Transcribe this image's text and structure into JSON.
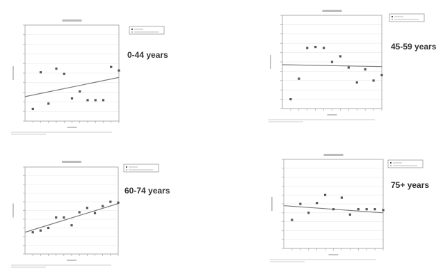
{
  "chart_data": [
    {
      "type": "scatter",
      "age_group": "0-44 years",
      "x": [
        1,
        2,
        3,
        4,
        5,
        6,
        7,
        8,
        9,
        10,
        11,
        12
      ],
      "y": [
        0.07,
        0.28,
        0.1,
        0.3,
        0.27,
        0.13,
        0.17,
        0.12,
        0.12,
        0.12,
        0.31,
        0.29
      ],
      "trend": {
        "y_start": 0.14,
        "y_end": 0.25
      },
      "ylim": [
        0,
        0.55
      ],
      "xlim": [
        0,
        12
      ]
    },
    {
      "type": "scatter",
      "age_group": "45-59 years",
      "x": [
        1,
        2,
        3,
        4,
        5,
        6,
        7,
        8,
        9,
        10,
        11,
        12
      ],
      "y": [
        0.1,
        0.32,
        0.65,
        0.66,
        0.65,
        0.5,
        0.56,
        0.44,
        0.28,
        0.42,
        0.3,
        0.36
      ],
      "trend": {
        "y_start": 0.47,
        "y_end": 0.45
      },
      "ylim": [
        0,
        1.0
      ],
      "xlim": [
        0,
        12
      ]
    },
    {
      "type": "scatter",
      "age_group": "60-74 years",
      "x": [
        1,
        2,
        3,
        4,
        5,
        6,
        7,
        8,
        9,
        10,
        11,
        12
      ],
      "y": [
        0.25,
        0.27,
        0.3,
        0.42,
        0.42,
        0.33,
        0.48,
        0.53,
        0.47,
        0.55,
        0.6,
        0.59
      ],
      "trend": {
        "y_start": 0.25,
        "y_end": 0.58
      },
      "ylim": [
        0,
        1.0
      ],
      "xlim": [
        0,
        12
      ]
    },
    {
      "type": "scatter",
      "age_group": "75+ years",
      "x": [
        1,
        2,
        3,
        4,
        5,
        6,
        7,
        8,
        9,
        10,
        11,
        12
      ],
      "y": [
        0.32,
        0.5,
        0.4,
        0.51,
        0.6,
        0.44,
        0.57,
        0.38,
        0.44,
        0.44,
        0.44,
        0.43
      ],
      "trend": {
        "y_start": 0.48,
        "y_end": 0.4
      },
      "ylim": [
        0,
        1.0
      ],
      "xlim": [
        0,
        12
      ]
    }
  ],
  "colors": {
    "marker": "#555555",
    "trend": "#7a7a7a",
    "frame": "#999999",
    "grid": "#e8e8e8",
    "legend_border": "#888888"
  }
}
